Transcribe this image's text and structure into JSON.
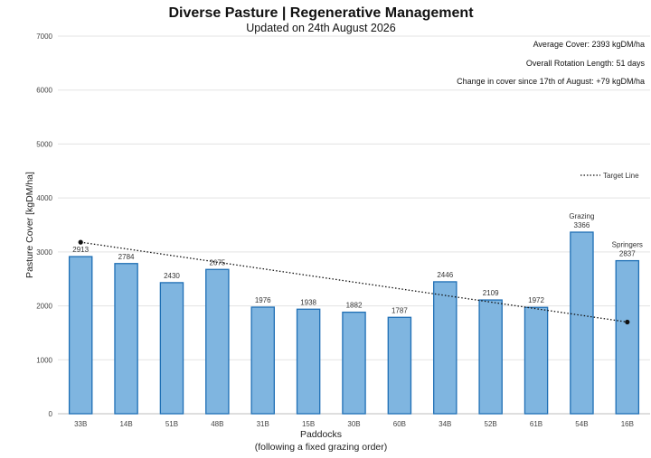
{
  "chart_data": {
    "type": "bar",
    "title": "Diverse Pasture | Regenerative Management",
    "subtitle": "Updated on 24th August 2026",
    "xlabel": "Paddocks",
    "xlabel_sub": "(following a fixed grazing order)",
    "ylabel": "Pasture Cover [kgDM/ha]",
    "ylim": [
      0,
      7000
    ],
    "yticks": [
      0,
      1000,
      2000,
      3000,
      4000,
      5000,
      6000,
      7000
    ],
    "grid": true,
    "categories": [
      "33B",
      "14B",
      "51B",
      "48B",
      "31B",
      "15B",
      "30B",
      "60B",
      "34B",
      "52B",
      "61B",
      "54B",
      "16B"
    ],
    "values": [
      2913,
      2784,
      2430,
      2675,
      1976,
      1938,
      1882,
      1787,
      2446,
      2109,
      1972,
      3366,
      2837
    ],
    "bar_tags": [
      null,
      null,
      null,
      null,
      null,
      null,
      null,
      null,
      null,
      null,
      null,
      "Grazing",
      "Springers"
    ],
    "bar_color": "#7fb5e0",
    "bar_edge_color": "#1f6fb5",
    "target_line": {
      "name": "Target Line",
      "start": {
        "category": "33B",
        "value": 3180
      },
      "end": {
        "category": "16B",
        "value": 1700
      },
      "color": "#111111",
      "style": "dotted"
    },
    "legend_position": "right",
    "annotations": [
      "Average Cover: 2393 kgDM/ha",
      "Overall Rotation Length: 51 days",
      "Change in cover since 17th of August: +79 kgDM/ha"
    ]
  }
}
